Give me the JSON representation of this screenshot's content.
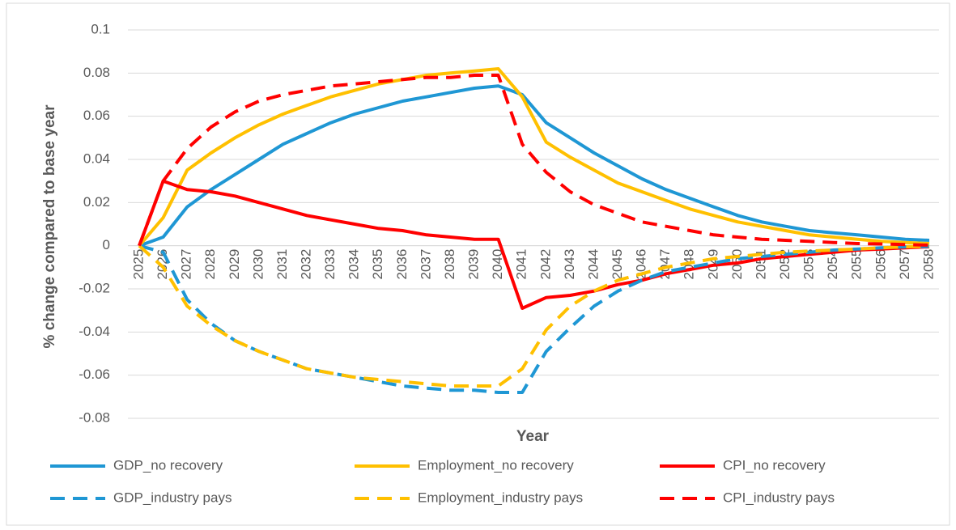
{
  "chart_data": {
    "type": "line",
    "xlabel": "Year",
    "ylabel": "% change compared to base year",
    "categories": [
      "2025",
      "2026",
      "2027",
      "2028",
      "2029",
      "2030",
      "2031",
      "2032",
      "2033",
      "2034",
      "2035",
      "2036",
      "2037",
      "2038",
      "2039",
      "2040",
      "2041",
      "2042",
      "2043",
      "2044",
      "2045",
      "2046",
      "2047",
      "2048",
      "2049",
      "2050",
      "2051",
      "2052",
      "2053",
      "2054",
      "2055",
      "2056",
      "2057",
      "2058"
    ],
    "ylim": [
      -0.08,
      0.1
    ],
    "yticks": [
      -0.08,
      -0.06,
      -0.04,
      -0.02,
      0,
      0.02,
      0.04,
      0.06,
      0.08,
      0.1
    ],
    "grid": true,
    "legend": "bottom",
    "series": [
      {
        "name": "GDP_no recovery",
        "color": "#1f97d4",
        "dash": "solid",
        "values": [
          0,
          0.004,
          0.018,
          0.026,
          0.033,
          0.04,
          0.047,
          0.052,
          0.057,
          0.061,
          0.064,
          0.067,
          0.069,
          0.071,
          0.073,
          0.074,
          0.07,
          0.057,
          0.05,
          0.043,
          0.037,
          0.031,
          0.026,
          0.022,
          0.018,
          0.014,
          0.011,
          0.009,
          0.007,
          0.006,
          0.005,
          0.004,
          0.003,
          0.0025
        ]
      },
      {
        "name": "Employment_no recovery",
        "color": "#ffc000",
        "dash": "solid",
        "values": [
          0,
          0.013,
          0.035,
          0.043,
          0.05,
          0.056,
          0.061,
          0.065,
          0.069,
          0.072,
          0.075,
          0.077,
          0.079,
          0.08,
          0.081,
          0.082,
          0.069,
          0.048,
          0.041,
          0.035,
          0.029,
          0.025,
          0.021,
          0.017,
          0.014,
          0.011,
          0.009,
          0.007,
          0.005,
          0.004,
          0.003,
          0.002,
          0.0015,
          0.001
        ]
      },
      {
        "name": "CPI_no recovery",
        "color": "#ff0000",
        "dash": "solid",
        "values": [
          0,
          0.03,
          0.026,
          0.025,
          0.023,
          0.02,
          0.017,
          0.014,
          0.012,
          0.01,
          0.008,
          0.007,
          0.005,
          0.004,
          0.003,
          0.003,
          -0.029,
          -0.024,
          -0.023,
          -0.021,
          -0.018,
          -0.016,
          -0.013,
          -0.011,
          -0.009,
          -0.008,
          -0.006,
          -0.005,
          -0.004,
          -0.003,
          -0.002,
          -0.0015,
          -0.001,
          -0.0005
        ]
      },
      {
        "name": "GDP_industry pays",
        "color": "#1f97d4",
        "dash": "dashed",
        "values": [
          0,
          -0.003,
          -0.025,
          -0.036,
          -0.044,
          -0.049,
          -0.053,
          -0.057,
          -0.059,
          -0.061,
          -0.063,
          -0.065,
          -0.066,
          -0.067,
          -0.067,
          -0.068,
          -0.068,
          -0.049,
          -0.038,
          -0.028,
          -0.021,
          -0.016,
          -0.012,
          -0.01,
          -0.008,
          -0.006,
          -0.005,
          -0.004,
          -0.003,
          -0.002,
          -0.0015,
          -0.001,
          -0.0005,
          -0.0003
        ]
      },
      {
        "name": "Employment_industry pays",
        "color": "#ffc000",
        "dash": "dashed",
        "values": [
          0,
          -0.01,
          -0.028,
          -0.037,
          -0.044,
          -0.049,
          -0.053,
          -0.057,
          -0.059,
          -0.061,
          -0.062,
          -0.063,
          -0.064,
          -0.065,
          -0.065,
          -0.065,
          -0.057,
          -0.039,
          -0.028,
          -0.021,
          -0.016,
          -0.013,
          -0.01,
          -0.008,
          -0.006,
          -0.005,
          -0.004,
          -0.003,
          -0.0025,
          -0.002,
          -0.0015,
          -0.001,
          -0.0005,
          -0.0002
        ]
      },
      {
        "name": "CPI_industry pays",
        "color": "#ff0000",
        "dash": "dashed",
        "values": [
          0,
          0.03,
          0.045,
          0.055,
          0.062,
          0.067,
          0.07,
          0.072,
          0.074,
          0.075,
          0.076,
          0.077,
          0.078,
          0.078,
          0.079,
          0.079,
          0.047,
          0.034,
          0.025,
          0.019,
          0.015,
          0.011,
          0.009,
          0.007,
          0.005,
          0.004,
          0.003,
          0.0025,
          0.002,
          0.0015,
          0.001,
          0.0008,
          0.0005,
          0.0003
        ]
      }
    ]
  }
}
